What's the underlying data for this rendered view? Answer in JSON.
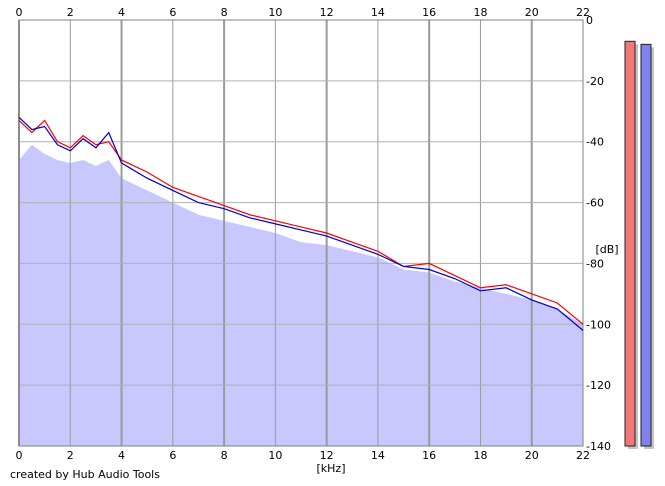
{
  "chart_data": {
    "type": "area",
    "title": "",
    "xlabel": "[kHz]",
    "ylabel": "[dB]",
    "xlim": [
      0,
      22
    ],
    "ylim": [
      -140,
      0
    ],
    "xticks": [
      0,
      2,
      4,
      6,
      8,
      10,
      12,
      14,
      16,
      18,
      20,
      22
    ],
    "yticks": [
      0,
      -20,
      -40,
      -60,
      -80,
      -100,
      -120,
      -140
    ],
    "grid": true,
    "envelope": {
      "color": "#c8c8ff",
      "x": [
        0,
        0.5,
        1,
        1.5,
        2,
        2.5,
        3,
        3.5,
        4,
        5,
        6,
        7,
        8,
        9,
        10,
        11,
        12,
        13,
        14,
        15,
        16,
        17,
        18,
        19,
        20,
        21,
        22
      ],
      "values": [
        -46,
        -41,
        -44,
        -46,
        -47,
        -46,
        -48,
        -46,
        -52,
        -56,
        -60,
        -64,
        -66,
        -68,
        -70,
        -73,
        -74,
        -76,
        -78,
        -82,
        -83,
        -86,
        -88,
        -90,
        -92,
        -95,
        -100
      ]
    },
    "series": [
      {
        "color": "#ff0000",
        "x": [
          0,
          0.5,
          1,
          1.5,
          2,
          2.5,
          3,
          3.5,
          4,
          5,
          6,
          7,
          8,
          9,
          10,
          11,
          12,
          13,
          14,
          15,
          16,
          17,
          18,
          19,
          20,
          21,
          22
        ],
        "values": [
          -33,
          -37,
          -33,
          -40,
          -42,
          -38,
          -41,
          -40,
          -46,
          -50,
          -55,
          -58,
          -61,
          -64,
          -66,
          -68,
          -70,
          -73,
          -76,
          -81,
          -80,
          -84,
          -88,
          -87,
          -90,
          -93,
          -100
        ]
      },
      {
        "color": "#0000c8",
        "x": [
          0,
          0.5,
          1,
          1.5,
          2,
          2.5,
          3,
          3.5,
          4,
          5,
          6,
          7,
          8,
          9,
          10,
          11,
          12,
          13,
          14,
          15,
          16,
          17,
          18,
          19,
          20,
          21,
          22
        ],
        "values": [
          -32,
          -36,
          -35,
          -41,
          -43,
          -39,
          -42,
          -37,
          -47,
          -52,
          -56,
          -60,
          -62,
          -65,
          -67,
          -69,
          -71,
          -74,
          -77,
          -81,
          -82,
          -85,
          -89,
          -88,
          -92,
          -95,
          -102
        ]
      }
    ],
    "level_meters": [
      {
        "color": "#f07878",
        "level_db": -7
      },
      {
        "color": "#8080ee",
        "level_db": -8
      }
    ]
  },
  "credit": "created by Hub Audio Tools"
}
